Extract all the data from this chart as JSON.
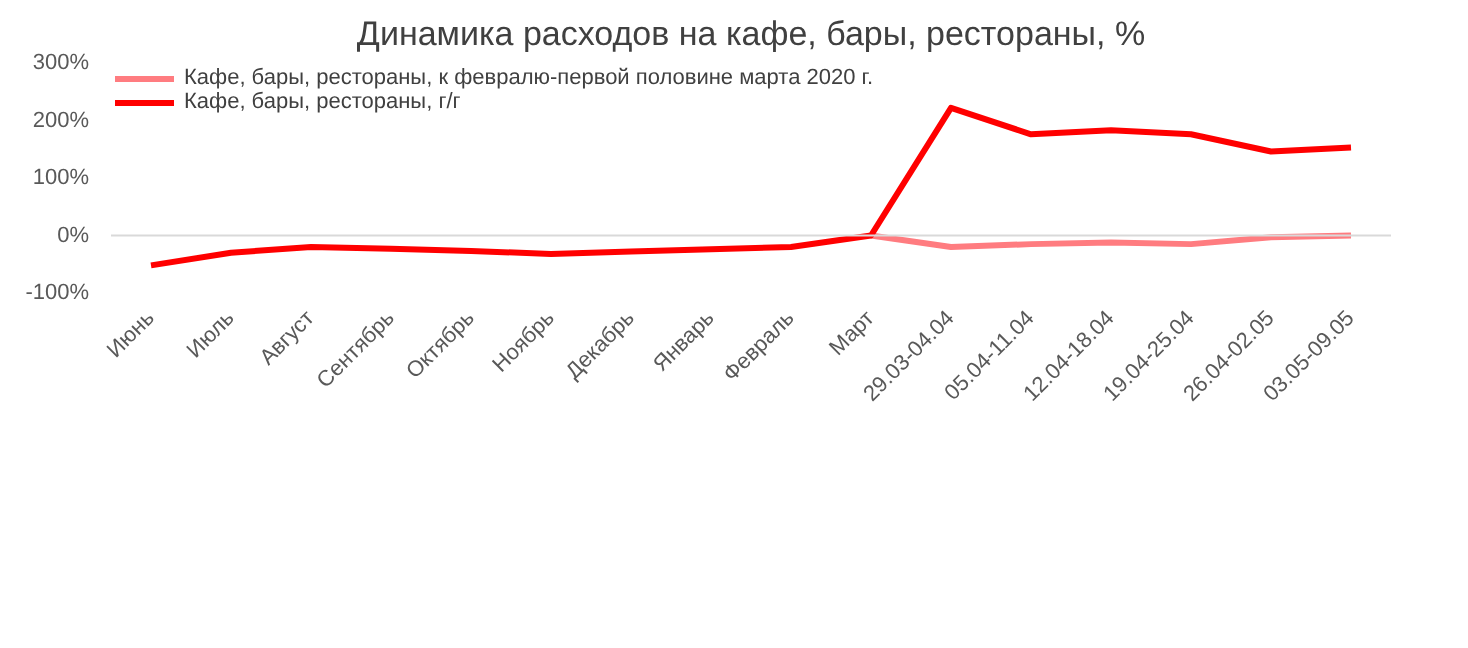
{
  "chart_data": {
    "type": "line",
    "title": "Динамика расходов на кафе, бары, рестораны, %",
    "categories": [
      "Июнь",
      "Июль",
      "Август",
      "Сентябрь",
      "Октябрь",
      "Ноябрь",
      "Декабрь",
      "Январь",
      "Февраль",
      "Март",
      "29.03-04.04",
      "05.04-11.04",
      "12.04-18.04",
      "19.04-25.04",
      "26.04-02.05",
      "03.05-09.05"
    ],
    "series": [
      {
        "name": "Кафе, бары, рестораны, к февралю-первой половине марта 2020 г.",
        "color": "#ff7c80",
        "values": [
          null,
          null,
          null,
          null,
          null,
          null,
          null,
          null,
          null,
          0,
          -20,
          -15,
          -12,
          -15,
          -3,
          0
        ]
      },
      {
        "name": "Кафе, бары, рестораны, г/г",
        "color": "#ff0000",
        "values": [
          -52,
          -30,
          -20,
          -23,
          -27,
          -32,
          -28,
          -24,
          -20,
          0,
          222,
          176,
          183,
          176,
          146,
          153
        ]
      }
    ],
    "ylim": [
      -100,
      300
    ],
    "yticks": [
      {
        "value": -100,
        "label": "-100%"
      },
      {
        "value": 0,
        "label": "0%"
      },
      {
        "value": 100,
        "label": "100%"
      },
      {
        "value": 200,
        "label": "200%"
      },
      {
        "value": 300,
        "label": "300%"
      }
    ],
    "ref_lines": [
      {
        "axis": "y",
        "value": 0,
        "color": "#d9d9d9"
      }
    ],
    "grid": false,
    "legend": "top left",
    "marker": "none",
    "line_style": "solid"
  }
}
